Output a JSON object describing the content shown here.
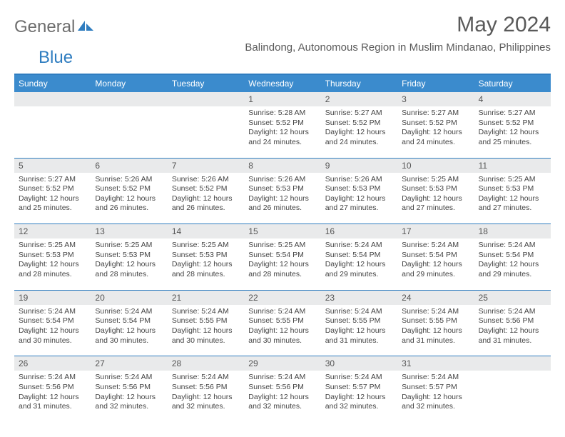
{
  "logo": {
    "text1": "General",
    "text2": "Blue"
  },
  "title": "May 2024",
  "location": "Balindong, Autonomous Region in Muslim Mindanao, Philippines",
  "colors": {
    "header_bg": "#3b8bcd",
    "header_text": "#ffffff",
    "border": "#2f7dc0",
    "daynum_bg": "#e9eaeb",
    "body_text": "#444444",
    "logo_gray": "#6d6d6d",
    "logo_blue": "#2f7dc0"
  },
  "day_names": [
    "Sunday",
    "Monday",
    "Tuesday",
    "Wednesday",
    "Thursday",
    "Friday",
    "Saturday"
  ],
  "weeks": [
    {
      "nums": [
        "",
        "",
        "",
        "1",
        "2",
        "3",
        "4"
      ],
      "cells": [
        null,
        null,
        null,
        {
          "sunrise": "Sunrise: 5:28 AM",
          "sunset": "Sunset: 5:52 PM",
          "day1": "Daylight: 12 hours",
          "day2": "and 24 minutes."
        },
        {
          "sunrise": "Sunrise: 5:27 AM",
          "sunset": "Sunset: 5:52 PM",
          "day1": "Daylight: 12 hours",
          "day2": "and 24 minutes."
        },
        {
          "sunrise": "Sunrise: 5:27 AM",
          "sunset": "Sunset: 5:52 PM",
          "day1": "Daylight: 12 hours",
          "day2": "and 24 minutes."
        },
        {
          "sunrise": "Sunrise: 5:27 AM",
          "sunset": "Sunset: 5:52 PM",
          "day1": "Daylight: 12 hours",
          "day2": "and 25 minutes."
        }
      ]
    },
    {
      "nums": [
        "5",
        "6",
        "7",
        "8",
        "9",
        "10",
        "11"
      ],
      "cells": [
        {
          "sunrise": "Sunrise: 5:27 AM",
          "sunset": "Sunset: 5:52 PM",
          "day1": "Daylight: 12 hours",
          "day2": "and 25 minutes."
        },
        {
          "sunrise": "Sunrise: 5:26 AM",
          "sunset": "Sunset: 5:52 PM",
          "day1": "Daylight: 12 hours",
          "day2": "and 26 minutes."
        },
        {
          "sunrise": "Sunrise: 5:26 AM",
          "sunset": "Sunset: 5:52 PM",
          "day1": "Daylight: 12 hours",
          "day2": "and 26 minutes."
        },
        {
          "sunrise": "Sunrise: 5:26 AM",
          "sunset": "Sunset: 5:53 PM",
          "day1": "Daylight: 12 hours",
          "day2": "and 26 minutes."
        },
        {
          "sunrise": "Sunrise: 5:26 AM",
          "sunset": "Sunset: 5:53 PM",
          "day1": "Daylight: 12 hours",
          "day2": "and 27 minutes."
        },
        {
          "sunrise": "Sunrise: 5:25 AM",
          "sunset": "Sunset: 5:53 PM",
          "day1": "Daylight: 12 hours",
          "day2": "and 27 minutes."
        },
        {
          "sunrise": "Sunrise: 5:25 AM",
          "sunset": "Sunset: 5:53 PM",
          "day1": "Daylight: 12 hours",
          "day2": "and 27 minutes."
        }
      ]
    },
    {
      "nums": [
        "12",
        "13",
        "14",
        "15",
        "16",
        "17",
        "18"
      ],
      "cells": [
        {
          "sunrise": "Sunrise: 5:25 AM",
          "sunset": "Sunset: 5:53 PM",
          "day1": "Daylight: 12 hours",
          "day2": "and 28 minutes."
        },
        {
          "sunrise": "Sunrise: 5:25 AM",
          "sunset": "Sunset: 5:53 PM",
          "day1": "Daylight: 12 hours",
          "day2": "and 28 minutes."
        },
        {
          "sunrise": "Sunrise: 5:25 AM",
          "sunset": "Sunset: 5:53 PM",
          "day1": "Daylight: 12 hours",
          "day2": "and 28 minutes."
        },
        {
          "sunrise": "Sunrise: 5:25 AM",
          "sunset": "Sunset: 5:54 PM",
          "day1": "Daylight: 12 hours",
          "day2": "and 28 minutes."
        },
        {
          "sunrise": "Sunrise: 5:24 AM",
          "sunset": "Sunset: 5:54 PM",
          "day1": "Daylight: 12 hours",
          "day2": "and 29 minutes."
        },
        {
          "sunrise": "Sunrise: 5:24 AM",
          "sunset": "Sunset: 5:54 PM",
          "day1": "Daylight: 12 hours",
          "day2": "and 29 minutes."
        },
        {
          "sunrise": "Sunrise: 5:24 AM",
          "sunset": "Sunset: 5:54 PM",
          "day1": "Daylight: 12 hours",
          "day2": "and 29 minutes."
        }
      ]
    },
    {
      "nums": [
        "19",
        "20",
        "21",
        "22",
        "23",
        "24",
        "25"
      ],
      "cells": [
        {
          "sunrise": "Sunrise: 5:24 AM",
          "sunset": "Sunset: 5:54 PM",
          "day1": "Daylight: 12 hours",
          "day2": "and 30 minutes."
        },
        {
          "sunrise": "Sunrise: 5:24 AM",
          "sunset": "Sunset: 5:54 PM",
          "day1": "Daylight: 12 hours",
          "day2": "and 30 minutes."
        },
        {
          "sunrise": "Sunrise: 5:24 AM",
          "sunset": "Sunset: 5:55 PM",
          "day1": "Daylight: 12 hours",
          "day2": "and 30 minutes."
        },
        {
          "sunrise": "Sunrise: 5:24 AM",
          "sunset": "Sunset: 5:55 PM",
          "day1": "Daylight: 12 hours",
          "day2": "and 30 minutes."
        },
        {
          "sunrise": "Sunrise: 5:24 AM",
          "sunset": "Sunset: 5:55 PM",
          "day1": "Daylight: 12 hours",
          "day2": "and 31 minutes."
        },
        {
          "sunrise": "Sunrise: 5:24 AM",
          "sunset": "Sunset: 5:55 PM",
          "day1": "Daylight: 12 hours",
          "day2": "and 31 minutes."
        },
        {
          "sunrise": "Sunrise: 5:24 AM",
          "sunset": "Sunset: 5:56 PM",
          "day1": "Daylight: 12 hours",
          "day2": "and 31 minutes."
        }
      ]
    },
    {
      "nums": [
        "26",
        "27",
        "28",
        "29",
        "30",
        "31",
        ""
      ],
      "cells": [
        {
          "sunrise": "Sunrise: 5:24 AM",
          "sunset": "Sunset: 5:56 PM",
          "day1": "Daylight: 12 hours",
          "day2": "and 31 minutes."
        },
        {
          "sunrise": "Sunrise: 5:24 AM",
          "sunset": "Sunset: 5:56 PM",
          "day1": "Daylight: 12 hours",
          "day2": "and 32 minutes."
        },
        {
          "sunrise": "Sunrise: 5:24 AM",
          "sunset": "Sunset: 5:56 PM",
          "day1": "Daylight: 12 hours",
          "day2": "and 32 minutes."
        },
        {
          "sunrise": "Sunrise: 5:24 AM",
          "sunset": "Sunset: 5:56 PM",
          "day1": "Daylight: 12 hours",
          "day2": "and 32 minutes."
        },
        {
          "sunrise": "Sunrise: 5:24 AM",
          "sunset": "Sunset: 5:57 PM",
          "day1": "Daylight: 12 hours",
          "day2": "and 32 minutes."
        },
        {
          "sunrise": "Sunrise: 5:24 AM",
          "sunset": "Sunset: 5:57 PM",
          "day1": "Daylight: 12 hours",
          "day2": "and 32 minutes."
        },
        null
      ]
    }
  ]
}
